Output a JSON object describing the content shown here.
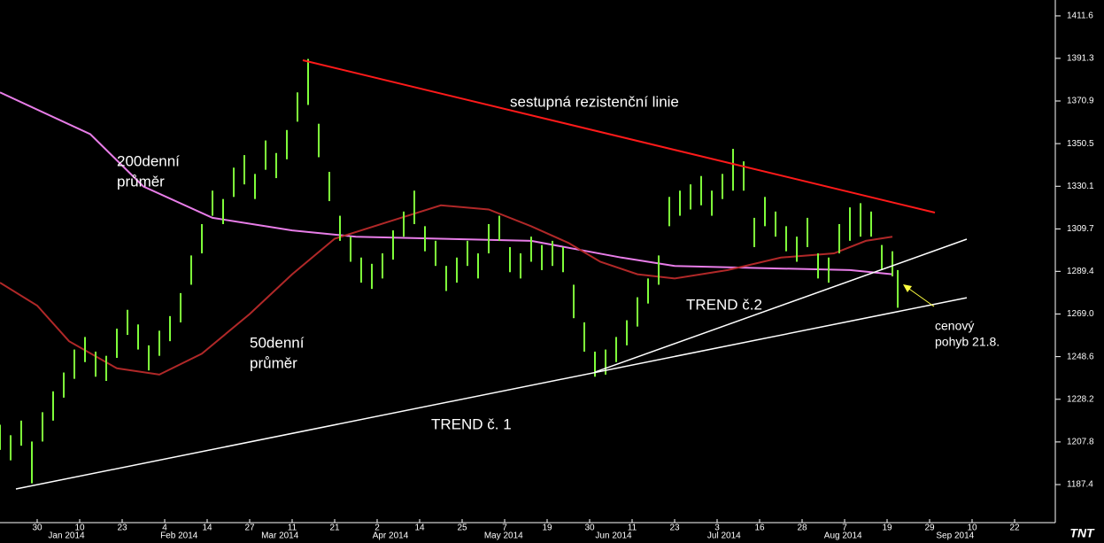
{
  "chart_data": {
    "type": "hilo",
    "color": "#7fff3a",
    "x": [
      0,
      2,
      4,
      6,
      8,
      10,
      12,
      14,
      16,
      18,
      20,
      22,
      24,
      26,
      28,
      30,
      32,
      34,
      36,
      38,
      40,
      42,
      44,
      46,
      48,
      50,
      52,
      54,
      56,
      58,
      60,
      62,
      64,
      66,
      68,
      70,
      72,
      74,
      76,
      78,
      80,
      82,
      84,
      86,
      88,
      90,
      92,
      94,
      96,
      98,
      100,
      102,
      104,
      106,
      108,
      110,
      112,
      114,
      116,
      118,
      120,
      122,
      124,
      126,
      128,
      130,
      132,
      134,
      136,
      138,
      140,
      142,
      144,
      146,
      148,
      150,
      152,
      154,
      156,
      158,
      160,
      162,
      164,
      166,
      168,
      169
    ],
    "high": [
      1216,
      1211,
      1218,
      1208,
      1222,
      1232,
      1241,
      1252,
      1258,
      1251,
      1249,
      1262,
      1271,
      1264,
      1254,
      1261,
      1268,
      1279,
      1297,
      1312,
      1328,
      1324,
      1339,
      1345,
      1336,
      1352,
      1346,
      1357,
      1375,
      1391,
      1360,
      1337,
      1316,
      1306,
      1296,
      1293,
      1298,
      1309,
      1318,
      1328,
      1311,
      1304,
      1292,
      1296,
      1304,
      1298,
      1312,
      1316,
      1301,
      1298,
      1306,
      1302,
      1304,
      1301,
      1283,
      1265,
      1251,
      1252,
      1258,
      1266,
      1277,
      1286,
      1297,
      1325,
      1328,
      1331,
      1335,
      1328,
      1336,
      1348,
      1342,
      1315,
      1325,
      1318,
      1311,
      1306,
      1315,
      1298,
      1296,
      1312,
      1320,
      1322,
      1318,
      1302,
      1299,
      1290
    ],
    "low": [
      1204,
      1199,
      1206,
      1188,
      1208,
      1218,
      1229,
      1238,
      1246,
      1239,
      1237,
      1248,
      1259,
      1252,
      1242,
      1249,
      1256,
      1265,
      1283,
      1298,
      1316,
      1312,
      1325,
      1331,
      1324,
      1338,
      1334,
      1343,
      1361,
      1369,
      1344,
      1323,
      1304,
      1294,
      1284,
      1281,
      1286,
      1295,
      1306,
      1312,
      1299,
      1292,
      1280,
      1284,
      1292,
      1286,
      1298,
      1304,
      1289,
      1286,
      1294,
      1290,
      1292,
      1289,
      1267,
      1251,
      1239,
      1240,
      1246,
      1254,
      1263,
      1274,
      1283,
      1311,
      1316,
      1319,
      1321,
      1316,
      1324,
      1328,
      1328,
      1301,
      1311,
      1306,
      1299,
      1294,
      1301,
      1286,
      1284,
      1298,
      1304,
      1306,
      1306,
      1290,
      1287,
      1272
    ],
    "series": [
      {
        "label": [
          "200denní",
          "průměr"
        ],
        "color": "#e87de8",
        "x": [
          0,
          17,
          27,
          40,
          55,
          67,
          83,
          100,
          117,
          127,
          143,
          160,
          168
        ],
        "values": [
          1375,
          1355,
          1330,
          1315,
          1309,
          1306,
          1305,
          1304,
          1296,
          1292,
          1291,
          1290,
          1288
        ]
      },
      {
        "label": [
          "50denní",
          "průměr"
        ],
        "color": "#b02828",
        "x": [
          0,
          7,
          13,
          22,
          30,
          38,
          47,
          55,
          63,
          73,
          83,
          92,
          100,
          107,
          113,
          120,
          127,
          137,
          147,
          157,
          163,
          168
        ],
        "values": [
          1284,
          1273,
          1256,
          1243,
          1240,
          1250,
          1269,
          1288,
          1305,
          1313,
          1321,
          1319,
          1311,
          1303,
          1294,
          1288,
          1286,
          1290,
          1296,
          1298,
          1304,
          1306
        ]
      }
    ],
    "trendlines": [
      {
        "label": "sestupná rezistenční linie",
        "color": "#ff1a1a",
        "x": [
          57,
          176
        ],
        "values": [
          1390.4,
          1317.5
        ]
      },
      {
        "label": "TREND č. 1",
        "color": "#ffffff",
        "x": [
          3,
          182
        ],
        "values": [
          1185.3,
          1276.8
        ]
      },
      {
        "label": "TREND č.2",
        "color": "#ffffff",
        "x": [
          112,
          182
        ],
        "values": [
          1241.2,
          1304.8
        ]
      }
    ],
    "annotation": [
      "cenový",
      "pohyb 21.8."
    ],
    "xlim": [
      0,
      198
    ],
    "ylim": [
      1169.2,
      1419.2
    ],
    "yticks": [
      1411.6,
      1391.3,
      1370.9,
      1350.5,
      1330.1,
      1309.7,
      1289.4,
      {
        "value": 1269,
        "label": "1269.0"
      },
      1248.6,
      1228.2,
      1207.8,
      1187.4
    ],
    "xticks": [
      {
        "value": 7,
        "label": "30"
      },
      {
        "value": 15,
        "label": "10"
      },
      {
        "value": 23,
        "label": "23"
      },
      {
        "value": 31,
        "label": "4"
      },
      {
        "value": 39,
        "label": "14"
      },
      {
        "value": 47,
        "label": "27"
      },
      {
        "value": 55,
        "label": "11"
      },
      {
        "value": 63,
        "label": "21"
      },
      {
        "value": 71,
        "label": "2"
      },
      {
        "value": 79,
        "label": "14"
      },
      {
        "value": 87,
        "label": "25"
      },
      {
        "value": 95,
        "label": "7"
      },
      {
        "value": 103,
        "label": "19"
      },
      {
        "value": 111,
        "label": "30"
      },
      {
        "value": 119,
        "label": "11"
      },
      {
        "value": 127,
        "label": "23"
      },
      {
        "value": 135,
        "label": "3"
      },
      {
        "value": 143,
        "label": "16"
      },
      {
        "value": 151,
        "label": "28"
      },
      {
        "value": 159,
        "label": "7"
      },
      {
        "value": 167,
        "label": "19"
      },
      {
        "value": 175,
        "label": "29"
      },
      {
        "value": 183,
        "label": "10"
      },
      {
        "value": 191,
        "label": "22"
      }
    ],
    "month_labels": [
      {
        "value": 12.5,
        "label": "Jan 2014"
      },
      {
        "value": 33.7,
        "label": "Feb 2014"
      },
      {
        "value": 52.7,
        "label": "Mar 2014"
      },
      {
        "value": 73.5,
        "label": "Apr 2014"
      },
      {
        "value": 94.8,
        "label": "May 2014"
      },
      {
        "value": 115.5,
        "label": "Jun 2014"
      },
      {
        "value": 136.3,
        "label": "Jul 2014"
      },
      {
        "value": 158.7,
        "label": "Aug 2014"
      },
      {
        "value": 179.8,
        "label": "Sep 2014"
      }
    ],
    "logo": "TNT"
  }
}
